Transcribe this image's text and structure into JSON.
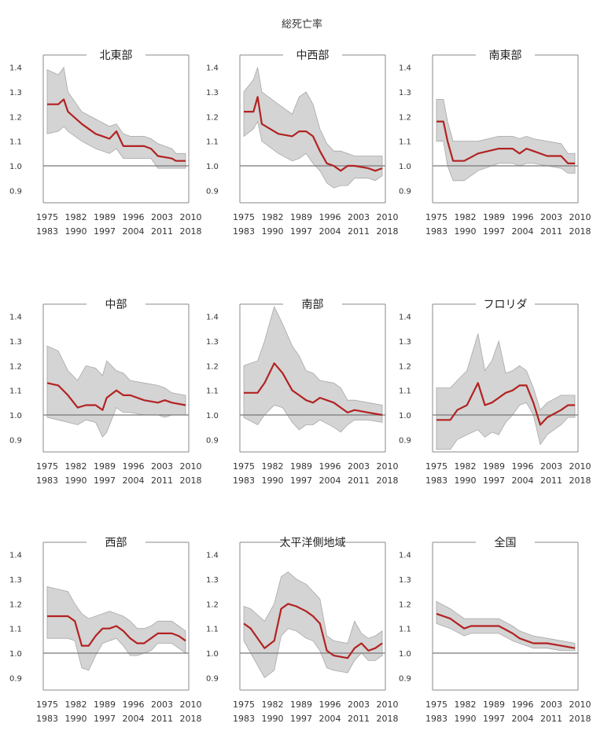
{
  "title": "総死亡率",
  "x_tick_rows": [
    [
      "1975",
      "1982",
      "1989",
      "1996",
      "2003",
      "2010"
    ],
    [
      "1983",
      "1990",
      "1997",
      "2004",
      "2011",
      "2018"
    ]
  ],
  "y_ticks": [
    "1.4",
    "1.3",
    "1.2",
    "1.1",
    "1.0",
    "0.9"
  ],
  "colors": {
    "line": "#b22222",
    "band": "#d4d4d4",
    "band_edge": "#a8a8a8",
    "frame": "#888888",
    "ref": "#777777"
  },
  "chart_data": [
    {
      "type": "line",
      "title": "北東部",
      "ylim": [
        0.85,
        1.45
      ],
      "reference_line": 1.0,
      "series": [
        {
          "x": [
            0,
            0.08,
            0.12,
            0.15,
            0.25,
            0.35,
            0.45,
            0.5,
            0.55,
            0.6,
            0.7,
            0.75,
            0.8,
            0.9,
            0.93,
            1.0
          ],
          "values": [
            1.25,
            1.25,
            1.27,
            1.22,
            1.17,
            1.13,
            1.11,
            1.14,
            1.08,
            1.08,
            1.08,
            1.07,
            1.04,
            1.03,
            1.02,
            1.02
          ],
          "upper": [
            1.39,
            1.37,
            1.4,
            1.3,
            1.22,
            1.19,
            1.16,
            1.17,
            1.13,
            1.12,
            1.12,
            1.11,
            1.09,
            1.07,
            1.05,
            1.05
          ],
          "lower": [
            1.13,
            1.14,
            1.16,
            1.14,
            1.1,
            1.07,
            1.05,
            1.07,
            1.03,
            1.03,
            1.03,
            1.03,
            0.99,
            0.99,
            0.99,
            0.99
          ]
        }
      ]
    },
    {
      "type": "line",
      "title": "中西部",
      "ylim": [
        0.85,
        1.45
      ],
      "reference_line": 1.0,
      "series": [
        {
          "x": [
            0,
            0.07,
            0.1,
            0.13,
            0.25,
            0.35,
            0.4,
            0.45,
            0.5,
            0.55,
            0.6,
            0.65,
            0.7,
            0.75,
            0.8,
            0.9,
            0.95,
            1.0
          ],
          "values": [
            1.22,
            1.22,
            1.28,
            1.17,
            1.13,
            1.12,
            1.14,
            1.14,
            1.12,
            1.06,
            1.01,
            1.0,
            0.98,
            1.0,
            1.0,
            0.99,
            0.98,
            0.99
          ],
          "upper": [
            1.3,
            1.35,
            1.4,
            1.3,
            1.25,
            1.21,
            1.28,
            1.3,
            1.25,
            1.15,
            1.09,
            1.06,
            1.06,
            1.05,
            1.04,
            1.04,
            1.04,
            1.04
          ],
          "lower": [
            1.12,
            1.15,
            1.18,
            1.1,
            1.05,
            1.02,
            1.03,
            1.05,
            1.01,
            0.98,
            0.93,
            0.91,
            0.92,
            0.92,
            0.95,
            0.95,
            0.94,
            0.96
          ]
        }
      ]
    },
    {
      "type": "line",
      "title": "南東部",
      "ylim": [
        0.85,
        1.45
      ],
      "reference_line": 1.0,
      "series": [
        {
          "x": [
            0,
            0.05,
            0.08,
            0.12,
            0.2,
            0.3,
            0.45,
            0.55,
            0.6,
            0.65,
            0.7,
            0.8,
            0.9,
            0.95,
            1.0
          ],
          "values": [
            1.18,
            1.18,
            1.1,
            1.02,
            1.02,
            1.05,
            1.07,
            1.07,
            1.05,
            1.07,
            1.06,
            1.04,
            1.04,
            1.01,
            1.01
          ],
          "upper": [
            1.27,
            1.27,
            1.18,
            1.1,
            1.1,
            1.1,
            1.12,
            1.12,
            1.11,
            1.12,
            1.11,
            1.1,
            1.09,
            1.05,
            1.05
          ],
          "lower": [
            1.1,
            1.1,
            1.0,
            0.94,
            0.94,
            0.98,
            1.01,
            1.01,
            1.0,
            1.01,
            1.01,
            1.0,
            0.99,
            0.97,
            0.97
          ]
        }
      ]
    },
    {
      "type": "line",
      "title": "中部",
      "ylim": [
        0.85,
        1.45
      ],
      "reference_line": 1.0,
      "series": [
        {
          "x": [
            0,
            0.08,
            0.15,
            0.22,
            0.28,
            0.35,
            0.4,
            0.43,
            0.5,
            0.55,
            0.6,
            0.7,
            0.8,
            0.85,
            0.9,
            1.0
          ],
          "values": [
            1.13,
            1.12,
            1.08,
            1.03,
            1.04,
            1.04,
            1.02,
            1.07,
            1.1,
            1.08,
            1.08,
            1.06,
            1.05,
            1.06,
            1.05,
            1.04
          ],
          "upper": [
            1.28,
            1.26,
            1.18,
            1.14,
            1.2,
            1.19,
            1.16,
            1.22,
            1.18,
            1.17,
            1.14,
            1.13,
            1.12,
            1.11,
            1.09,
            1.08
          ],
          "lower": [
            0.99,
            0.98,
            0.97,
            0.96,
            0.98,
            0.97,
            0.91,
            0.93,
            1.03,
            1.01,
            1.01,
            1.0,
            1.0,
            0.99,
            1.0,
            1.0
          ]
        }
      ]
    },
    {
      "type": "line",
      "title": "南部",
      "ylim": [
        0.85,
        1.45
      ],
      "reference_line": 1.0,
      "series": [
        {
          "x": [
            0,
            0.1,
            0.15,
            0.22,
            0.28,
            0.35,
            0.4,
            0.45,
            0.5,
            0.55,
            0.65,
            0.7,
            0.75,
            0.8,
            0.9,
            1.0
          ],
          "values": [
            1.09,
            1.09,
            1.13,
            1.21,
            1.17,
            1.1,
            1.08,
            1.06,
            1.05,
            1.07,
            1.05,
            1.03,
            1.01,
            1.02,
            1.01,
            1.0
          ],
          "upper": [
            1.2,
            1.22,
            1.3,
            1.44,
            1.37,
            1.28,
            1.24,
            1.18,
            1.17,
            1.14,
            1.13,
            1.11,
            1.06,
            1.06,
            1.05,
            1.04
          ],
          "lower": [
            0.99,
            0.96,
            1.0,
            1.04,
            1.03,
            0.97,
            0.94,
            0.96,
            0.96,
            0.98,
            0.95,
            0.93,
            0.96,
            0.98,
            0.98,
            0.97
          ]
        }
      ]
    },
    {
      "type": "line",
      "title": "フロリダ",
      "ylim": [
        0.85,
        1.45
      ],
      "reference_line": 1.0,
      "series": [
        {
          "x": [
            0,
            0.1,
            0.15,
            0.22,
            0.3,
            0.35,
            0.4,
            0.45,
            0.5,
            0.55,
            0.6,
            0.65,
            0.7,
            0.75,
            0.8,
            0.9,
            0.95,
            1.0
          ],
          "values": [
            0.98,
            0.98,
            1.02,
            1.04,
            1.13,
            1.04,
            1.05,
            1.07,
            1.09,
            1.1,
            1.12,
            1.12,
            1.05,
            0.96,
            0.99,
            1.02,
            1.04,
            1.04
          ],
          "upper": [
            1.11,
            1.11,
            1.14,
            1.18,
            1.33,
            1.18,
            1.22,
            1.3,
            1.17,
            1.18,
            1.2,
            1.18,
            1.11,
            1.02,
            1.05,
            1.08,
            1.08,
            1.08
          ],
          "lower": [
            0.86,
            0.86,
            0.9,
            0.92,
            0.94,
            0.91,
            0.93,
            0.92,
            0.97,
            1.0,
            1.04,
            1.05,
            1.0,
            0.88,
            0.92,
            0.96,
            0.99,
            0.99
          ]
        }
      ]
    },
    {
      "type": "line",
      "title": "西部",
      "ylim": [
        0.85,
        1.45
      ],
      "reference_line": 1.0,
      "series": [
        {
          "x": [
            0,
            0.15,
            0.2,
            0.25,
            0.3,
            0.35,
            0.4,
            0.45,
            0.5,
            0.55,
            0.6,
            0.65,
            0.7,
            0.75,
            0.8,
            0.9,
            0.95,
            1.0
          ],
          "values": [
            1.15,
            1.15,
            1.13,
            1.03,
            1.03,
            1.07,
            1.1,
            1.1,
            1.11,
            1.09,
            1.06,
            1.04,
            1.04,
            1.06,
            1.08,
            1.08,
            1.07,
            1.05
          ],
          "upper": [
            1.27,
            1.25,
            1.2,
            1.16,
            1.14,
            1.15,
            1.16,
            1.17,
            1.16,
            1.15,
            1.13,
            1.1,
            1.1,
            1.11,
            1.13,
            1.13,
            1.11,
            1.09
          ],
          "lower": [
            1.06,
            1.06,
            1.05,
            0.94,
            0.93,
            0.99,
            1.04,
            1.05,
            1.06,
            1.03,
            0.99,
            0.99,
            1.0,
            1.01,
            1.04,
            1.04,
            1.02,
            1.0
          ]
        }
      ]
    },
    {
      "type": "line",
      "title": "太平洋側地域",
      "ylim": [
        0.85,
        1.45
      ],
      "reference_line": 1.0,
      "series": [
        {
          "x": [
            0,
            0.05,
            0.15,
            0.22,
            0.27,
            0.32,
            0.38,
            0.45,
            0.5,
            0.55,
            0.6,
            0.65,
            0.75,
            0.8,
            0.85,
            0.9,
            0.95,
            1.0
          ],
          "values": [
            1.12,
            1.1,
            1.02,
            1.05,
            1.18,
            1.2,
            1.19,
            1.17,
            1.15,
            1.12,
            1.01,
            0.99,
            0.98,
            1.02,
            1.04,
            1.01,
            1.02,
            1.04
          ],
          "upper": [
            1.19,
            1.18,
            1.13,
            1.2,
            1.31,
            1.33,
            1.3,
            1.28,
            1.25,
            1.22,
            1.07,
            1.05,
            1.04,
            1.13,
            1.08,
            1.06,
            1.07,
            1.09
          ],
          "lower": [
            1.05,
            1.0,
            0.9,
            0.93,
            1.07,
            1.1,
            1.09,
            1.06,
            1.05,
            1.01,
            0.94,
            0.93,
            0.92,
            0.97,
            1.0,
            0.97,
            0.97,
            0.99
          ]
        }
      ]
    },
    {
      "type": "line",
      "title": "全国",
      "ylim": [
        0.85,
        1.45
      ],
      "reference_line": 1.0,
      "series": [
        {
          "x": [
            0,
            0.1,
            0.2,
            0.25,
            0.35,
            0.45,
            0.55,
            0.6,
            0.7,
            0.8,
            0.9,
            1.0
          ],
          "values": [
            1.16,
            1.14,
            1.1,
            1.11,
            1.11,
            1.11,
            1.08,
            1.06,
            1.04,
            1.04,
            1.03,
            1.02
          ],
          "upper": [
            1.21,
            1.18,
            1.14,
            1.14,
            1.14,
            1.14,
            1.11,
            1.09,
            1.07,
            1.06,
            1.05,
            1.04
          ],
          "lower": [
            1.12,
            1.1,
            1.07,
            1.08,
            1.08,
            1.08,
            1.05,
            1.04,
            1.02,
            1.02,
            1.01,
            1.01
          ]
        }
      ]
    }
  ]
}
